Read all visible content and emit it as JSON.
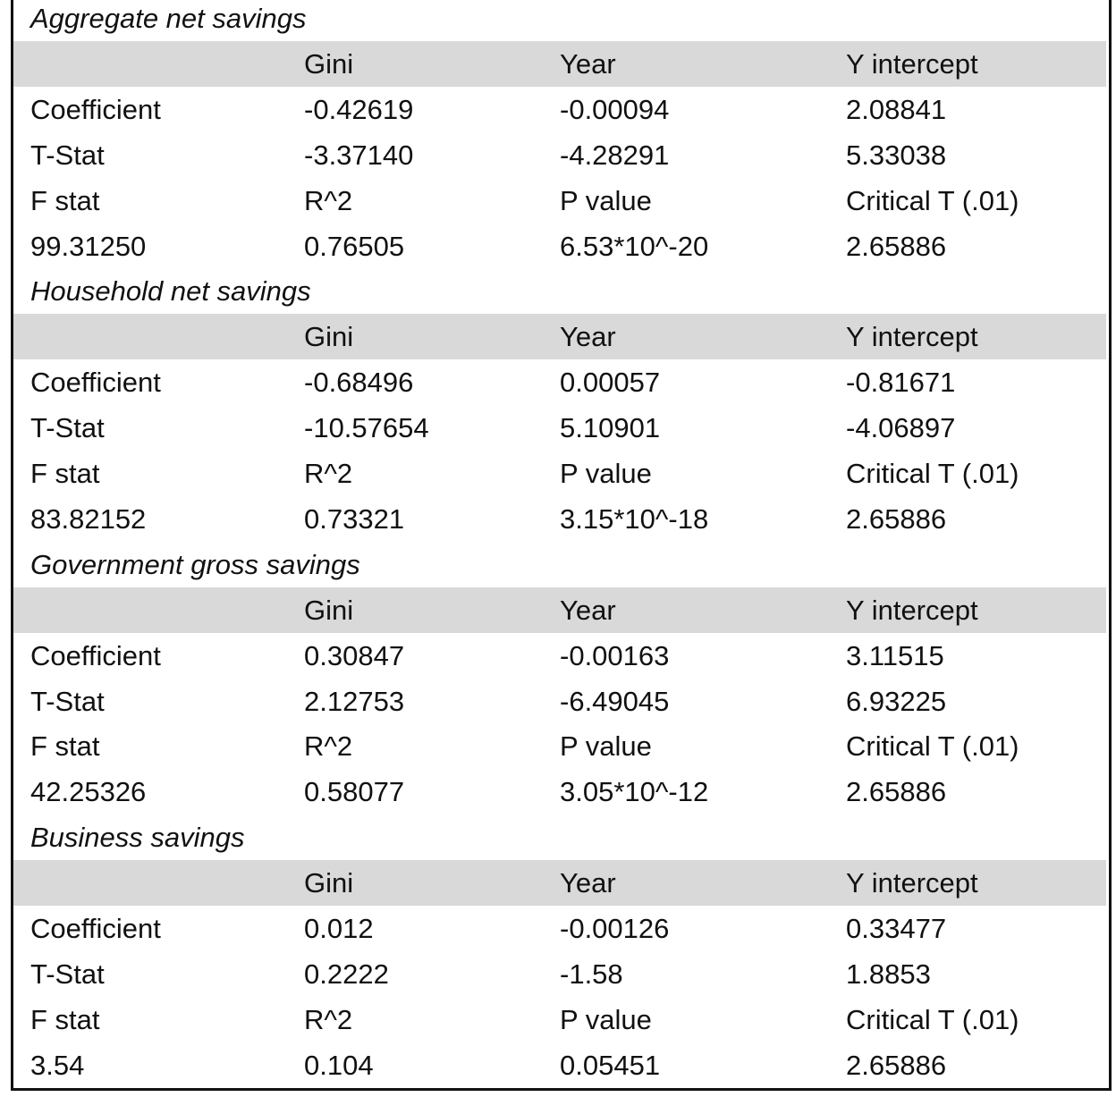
{
  "sections": [
    {
      "title": "Aggregate net savings",
      "header": [
        "Gini",
        "Year",
        "Y intercept"
      ],
      "rows": [
        [
          "Coefficient",
          "-0.42619",
          "-0.00094",
          "2.08841"
        ],
        [
          "T-Stat",
          "-3.37140",
          "-4.28291",
          "5.33038"
        ],
        [
          "F stat",
          "R^2",
          "P value",
          "Critical T (.01)"
        ],
        [
          "99.31250",
          "0.76505",
          "6.53*10^-20",
          "2.65886"
        ]
      ]
    },
    {
      "title": "Household net savings",
      "header": [
        "Gini",
        "Year",
        "Y intercept"
      ],
      "rows": [
        [
          "Coefficient",
          "-0.68496",
          "0.00057",
          "-0.81671"
        ],
        [
          "T-Stat",
          "-10.57654",
          "5.10901",
          "-4.06897"
        ],
        [
          "F stat",
          "R^2",
          "P value",
          "Critical T (.01)"
        ],
        [
          "83.82152",
          "0.73321",
          "3.15*10^-18",
          "2.65886"
        ]
      ]
    },
    {
      "title": "Government gross savings",
      "header": [
        "Gini",
        "Year",
        "Y intercept"
      ],
      "rows": [
        [
          "Coefficient",
          "0.30847",
          "-0.00163",
          "3.11515"
        ],
        [
          "T-Stat",
          "2.12753",
          "-6.49045",
          "6.93225"
        ],
        [
          "F stat",
          "R^2",
          "P value",
          "Critical T (.01)"
        ],
        [
          "42.25326",
          "0.58077",
          "3.05*10^-12",
          "2.65886"
        ]
      ]
    },
    {
      "title": "Business savings",
      "header": [
        "Gini",
        "Year",
        "Y intercept"
      ],
      "rows": [
        [
          "Coefficient",
          "0.012",
          "-0.00126",
          "0.33477"
        ],
        [
          "T-Stat",
          "0.2222",
          "-1.58",
          "1.8853"
        ],
        [
          "F stat",
          "R^2",
          "P value",
          "Critical T (.01)"
        ],
        [
          "3.54",
          "0.104",
          "0.05451",
          "2.65886"
        ]
      ]
    }
  ]
}
